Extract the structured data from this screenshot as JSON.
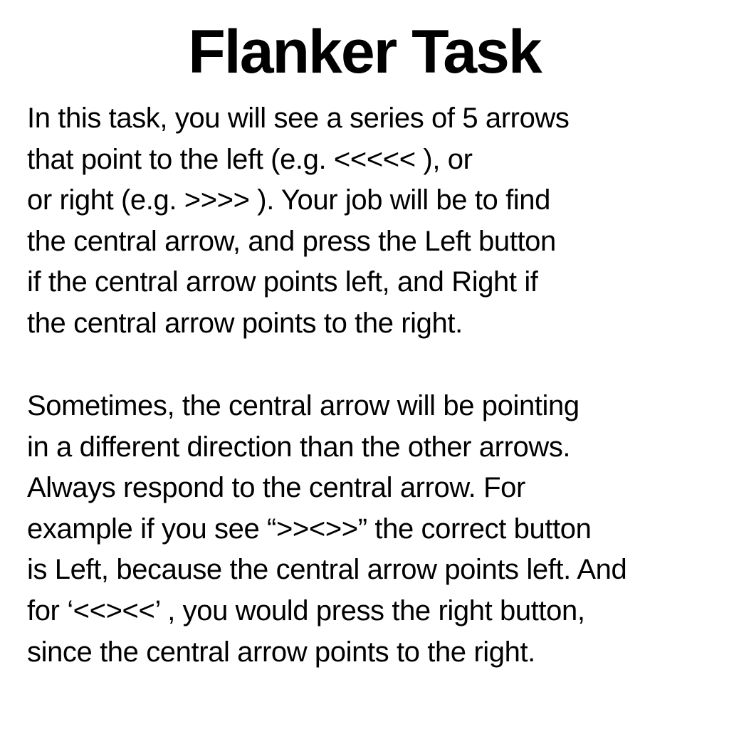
{
  "title": "Flanker Task",
  "paragraphs": [
    {
      "lines": [
        "In this task, you will see a series of 5 arrows",
        "that point to the left (e.g. <<<<< ), or",
        "or right (e.g. >>>> ). Your job will be to find",
        "the central arrow, and press the Left button",
        "if the central arrow points left, and Right if",
        "the central arrow points to the right."
      ]
    },
    {
      "lines": [
        "Sometimes, the central arrow will be pointing",
        "in a different direction than the other arrows.",
        "Always respond to the central arrow. For",
        "example if you see “>><>>” the correct button",
        "is Left, because the central arrow points left. And",
        "for ‘<<><<’ , you would press the right button,",
        "since the central arrow points to the right."
      ]
    }
  ]
}
